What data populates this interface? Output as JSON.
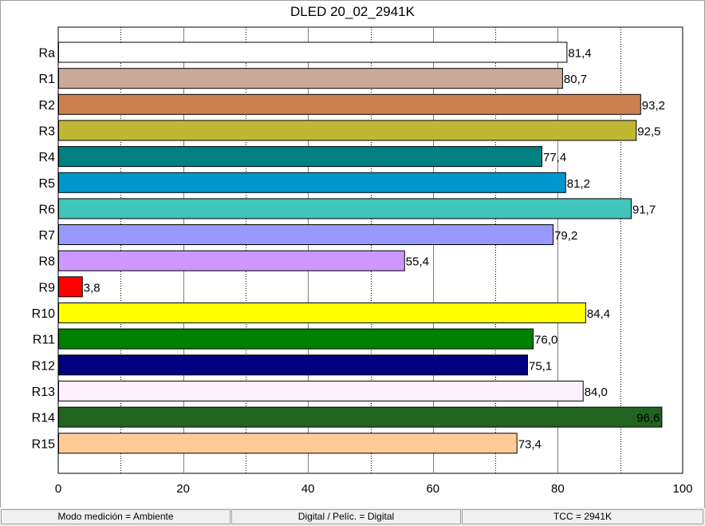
{
  "chart_data": {
    "type": "bar",
    "orientation": "horizontal",
    "title": "DLED 20_02_2941K",
    "categories": [
      "Ra",
      "R1",
      "R2",
      "R3",
      "R4",
      "R5",
      "R6",
      "R7",
      "R8",
      "R9",
      "R10",
      "R11",
      "R12",
      "R13",
      "R14",
      "R15"
    ],
    "values": [
      81.4,
      80.7,
      93.2,
      92.5,
      77.4,
      81.2,
      91.7,
      79.2,
      55.4,
      3.8,
      84.4,
      76.0,
      75.1,
      84.0,
      96.6,
      73.4
    ],
    "value_labels": [
      "81,4",
      "80,7",
      "93,2",
      "92,5",
      "77,4",
      "81,2",
      "91,7",
      "79,2",
      "55,4",
      "3,8",
      "84,4",
      "76,0",
      "75,1",
      "84,0",
      "96,6",
      "73,4"
    ],
    "colors": [
      "#ffffff",
      "#cca898",
      "#cc8050",
      "#c0b834",
      "#008080",
      "#0098cc",
      "#40c4bc",
      "#9898ff",
      "#cc98ff",
      "#ff0000",
      "#ffff00",
      "#008000",
      "#000080",
      "#fff0ff",
      "#206420",
      "#ffcc98"
    ],
    "xlim": [
      0,
      100
    ],
    "xticks": [
      0,
      20,
      40,
      60,
      80,
      100
    ],
    "grid": true,
    "xlabel": "",
    "ylabel": ""
  },
  "statusbar": {
    "mode": "Modo medición = Ambiente",
    "digital": "Digital / Pelíc. = Digital",
    "tcc": "TCC = 2941K"
  }
}
